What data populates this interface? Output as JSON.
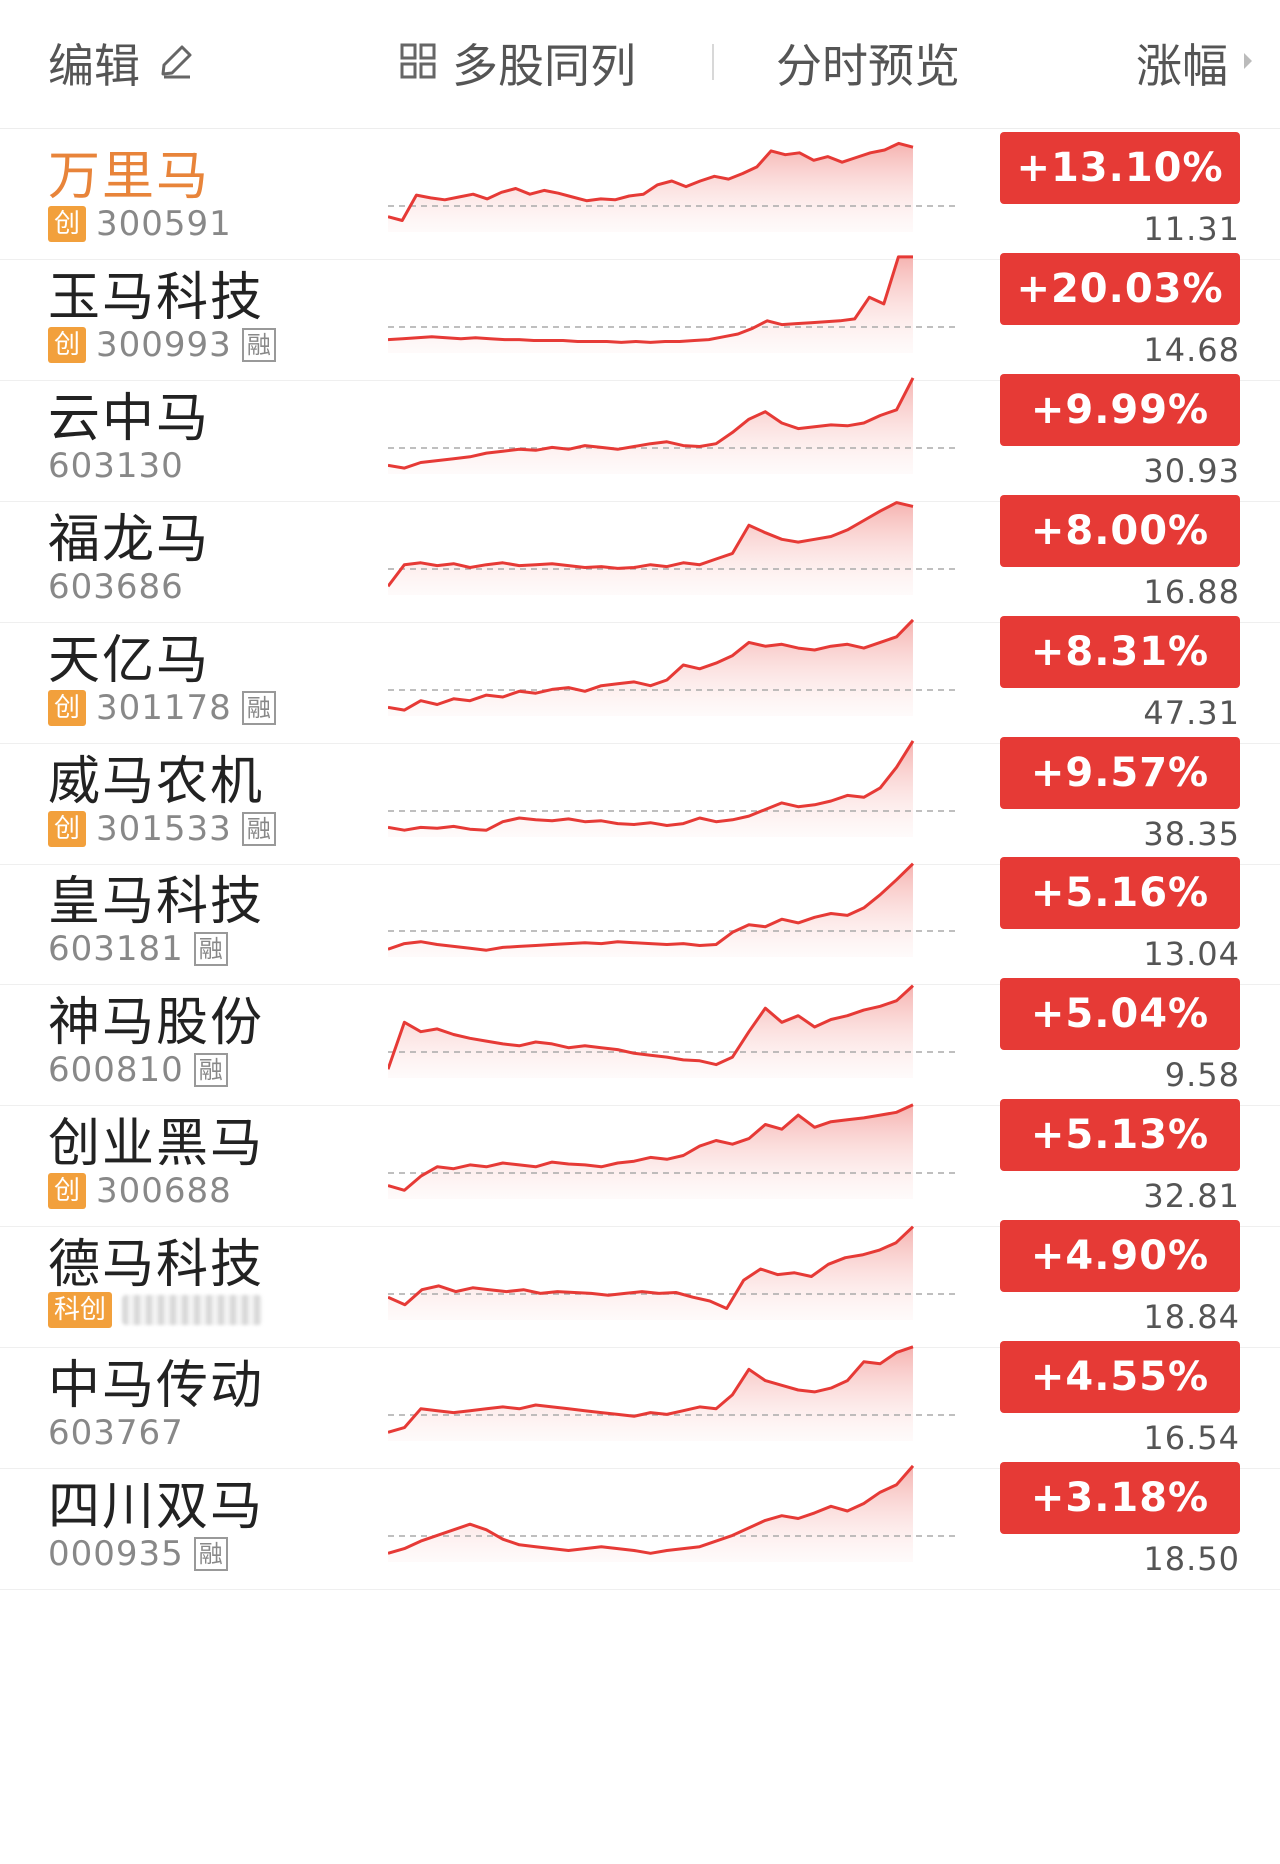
{
  "header": {
    "edit_label": "编辑",
    "multi_label": "多股同列",
    "preview_label": "分时预览",
    "sort_label": "涨幅"
  },
  "colors": {
    "up_red": "#e63a36",
    "active_name": "#e8843a",
    "board_tag": "#f2a03c"
  },
  "stocks": [
    {
      "name": "万里马",
      "tag": "创",
      "code": "300591",
      "margin": "",
      "change": "+13.10%",
      "price": "11.31",
      "active": true,
      "trend": [
        0.12,
        0.08,
        0.35,
        0.32,
        0.3,
        0.33,
        0.36,
        0.31,
        0.38,
        0.42,
        0.36,
        0.4,
        0.37,
        0.33,
        0.29,
        0.31,
        0.3,
        0.34,
        0.36,
        0.46,
        0.5,
        0.44,
        0.5,
        0.55,
        0.52,
        0.58,
        0.65,
        0.82,
        0.78,
        0.8,
        0.72,
        0.76,
        0.7,
        0.75,
        0.8,
        0.83,
        0.9,
        0.86
      ]
    },
    {
      "name": "玉马科技",
      "tag": "创",
      "code": "300993",
      "margin": "融",
      "change": "+20.03%",
      "price": "14.68",
      "active": false,
      "trend": [
        0.1,
        0.11,
        0.12,
        0.13,
        0.12,
        0.11,
        0.12,
        0.11,
        0.1,
        0.1,
        0.09,
        0.09,
        0.09,
        0.08,
        0.08,
        0.08,
        0.07,
        0.08,
        0.07,
        0.08,
        0.08,
        0.09,
        0.1,
        0.13,
        0.16,
        0.22,
        0.3,
        0.26,
        0.27,
        0.28,
        0.29,
        0.3,
        0.32,
        0.55,
        0.48,
        0.98,
        0.98
      ]
    },
    {
      "name": "云中马",
      "tag": "",
      "code": "603130",
      "margin": "",
      "change": "+9.99%",
      "price": "30.93",
      "active": false,
      "trend": [
        0.05,
        0.02,
        0.08,
        0.1,
        0.12,
        0.14,
        0.18,
        0.2,
        0.22,
        0.21,
        0.24,
        0.22,
        0.26,
        0.24,
        0.22,
        0.25,
        0.28,
        0.3,
        0.26,
        0.25,
        0.28,
        0.4,
        0.54,
        0.62,
        0.5,
        0.44,
        0.46,
        0.48,
        0.47,
        0.5,
        0.58,
        0.64,
        0.98
      ]
    },
    {
      "name": "福龙马",
      "tag": "",
      "code": "603686",
      "margin": "",
      "change": "+8.00%",
      "price": "16.88",
      "active": false,
      "trend": [
        0.05,
        0.28,
        0.3,
        0.27,
        0.29,
        0.25,
        0.28,
        0.3,
        0.27,
        0.28,
        0.29,
        0.27,
        0.25,
        0.26,
        0.24,
        0.25,
        0.28,
        0.26,
        0.3,
        0.28,
        0.34,
        0.4,
        0.7,
        0.62,
        0.55,
        0.52,
        0.55,
        0.58,
        0.65,
        0.75,
        0.85,
        0.94,
        0.9
      ]
    },
    {
      "name": "天亿马",
      "tag": "创",
      "code": "301178",
      "margin": "融",
      "change": "+8.31%",
      "price": "47.31",
      "active": false,
      "trend": [
        0.05,
        0.02,
        0.12,
        0.08,
        0.14,
        0.12,
        0.18,
        0.16,
        0.22,
        0.2,
        0.24,
        0.26,
        0.22,
        0.28,
        0.3,
        0.32,
        0.28,
        0.34,
        0.5,
        0.46,
        0.52,
        0.6,
        0.74,
        0.7,
        0.72,
        0.68,
        0.66,
        0.7,
        0.72,
        0.68,
        0.74,
        0.8,
        0.98
      ]
    },
    {
      "name": "威马农机",
      "tag": "创",
      "code": "301533",
      "margin": "融",
      "change": "+9.57%",
      "price": "38.35",
      "active": false,
      "trend": [
        0.06,
        0.03,
        0.06,
        0.05,
        0.07,
        0.04,
        0.03,
        0.12,
        0.16,
        0.14,
        0.13,
        0.15,
        0.12,
        0.13,
        0.1,
        0.09,
        0.11,
        0.08,
        0.1,
        0.16,
        0.12,
        0.14,
        0.18,
        0.25,
        0.32,
        0.28,
        0.3,
        0.34,
        0.4,
        0.38,
        0.48,
        0.7,
        0.98
      ]
    },
    {
      "name": "皇马科技",
      "tag": "",
      "code": "603181",
      "margin": "融",
      "change": "+5.16%",
      "price": "13.04",
      "active": false,
      "trend": [
        0.04,
        0.1,
        0.12,
        0.09,
        0.07,
        0.05,
        0.03,
        0.06,
        0.07,
        0.08,
        0.09,
        0.1,
        0.11,
        0.1,
        0.12,
        0.11,
        0.1,
        0.09,
        0.1,
        0.08,
        0.09,
        0.22,
        0.3,
        0.28,
        0.36,
        0.32,
        0.38,
        0.42,
        0.4,
        0.48,
        0.62,
        0.78,
        0.95
      ]
    },
    {
      "name": "神马股份",
      "tag": "",
      "code": "600810",
      "margin": "融",
      "change": "+5.04%",
      "price": "9.58",
      "active": false,
      "trend": [
        0.05,
        0.55,
        0.45,
        0.48,
        0.42,
        0.38,
        0.35,
        0.32,
        0.3,
        0.34,
        0.32,
        0.28,
        0.3,
        0.28,
        0.26,
        0.22,
        0.2,
        0.18,
        0.15,
        0.14,
        0.1,
        0.18,
        0.45,
        0.7,
        0.55,
        0.62,
        0.5,
        0.58,
        0.62,
        0.68,
        0.72,
        0.78,
        0.94
      ]
    },
    {
      "name": "创业黑马",
      "tag": "创",
      "code": "300688",
      "margin": "",
      "change": "+5.13%",
      "price": "32.81",
      "active": false,
      "trend": [
        0.1,
        0.05,
        0.2,
        0.3,
        0.28,
        0.32,
        0.3,
        0.34,
        0.32,
        0.3,
        0.35,
        0.33,
        0.32,
        0.3,
        0.34,
        0.36,
        0.4,
        0.38,
        0.42,
        0.52,
        0.58,
        0.54,
        0.6,
        0.75,
        0.7,
        0.85,
        0.72,
        0.78,
        0.8,
        0.82,
        0.85,
        0.88,
        0.96
      ]
    },
    {
      "name": "德马科技",
      "tag": "科创",
      "code": "",
      "margin": "",
      "change": "+4.90%",
      "price": "18.84",
      "active": false,
      "trend": [
        0.2,
        0.12,
        0.28,
        0.32,
        0.26,
        0.3,
        0.28,
        0.26,
        0.28,
        0.24,
        0.26,
        0.25,
        0.24,
        0.22,
        0.24,
        0.26,
        0.24,
        0.25,
        0.2,
        0.16,
        0.08,
        0.38,
        0.5,
        0.44,
        0.46,
        0.42,
        0.55,
        0.62,
        0.65,
        0.7,
        0.78,
        0.95
      ]
    },
    {
      "name": "中马传动",
      "tag": "",
      "code": "603767",
      "margin": "",
      "change": "+4.55%",
      "price": "16.54",
      "active": false,
      "trend": [
        0.05,
        0.1,
        0.3,
        0.28,
        0.26,
        0.28,
        0.3,
        0.32,
        0.3,
        0.34,
        0.32,
        0.3,
        0.28,
        0.26,
        0.24,
        0.22,
        0.26,
        0.24,
        0.28,
        0.32,
        0.3,
        0.45,
        0.72,
        0.6,
        0.55,
        0.5,
        0.48,
        0.52,
        0.6,
        0.8,
        0.78,
        0.9,
        0.96
      ]
    },
    {
      "name": "四川双马",
      "tag": "",
      "code": "000935",
      "margin": "融",
      "change": "+3.18%",
      "price": "18.50",
      "active": false,
      "trend": [
        0.05,
        0.1,
        0.18,
        0.24,
        0.3,
        0.36,
        0.3,
        0.2,
        0.14,
        0.12,
        0.1,
        0.08,
        0.1,
        0.12,
        0.1,
        0.08,
        0.05,
        0.08,
        0.1,
        0.12,
        0.18,
        0.24,
        0.32,
        0.4,
        0.45,
        0.42,
        0.48,
        0.55,
        0.5,
        0.58,
        0.7,
        0.78,
        0.98
      ]
    }
  ]
}
